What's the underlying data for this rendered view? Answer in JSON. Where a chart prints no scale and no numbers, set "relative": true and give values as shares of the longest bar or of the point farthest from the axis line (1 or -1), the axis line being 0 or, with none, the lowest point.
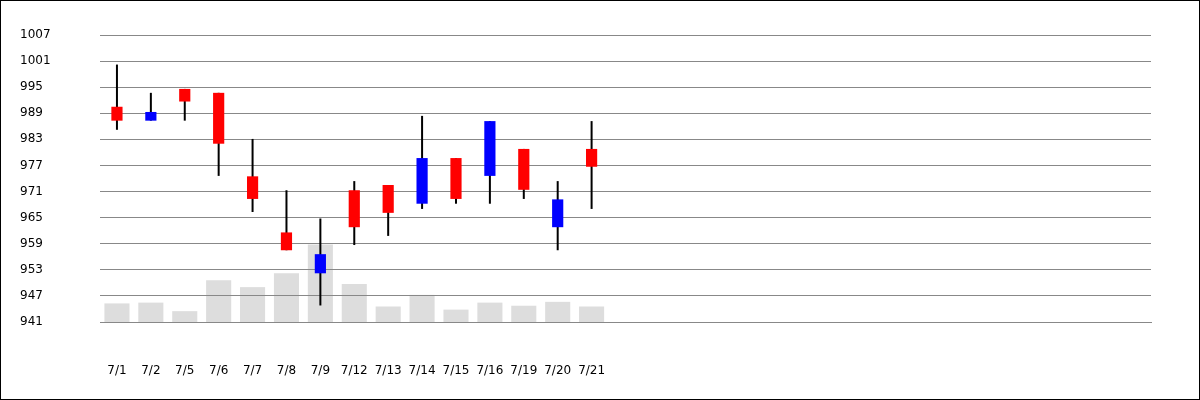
{
  "chart_data": [
    {
      "type": "candlestick",
      "categories": [
        "7/1",
        "7/2",
        "7/5",
        "7/6",
        "7/7",
        "7/8",
        "7/9",
        "7/12",
        "7/13",
        "7/14",
        "7/15",
        "7/16",
        "7/19",
        "7/20",
        "7/21",
        null,
        null,
        null,
        null,
        null,
        null,
        null,
        null,
        null,
        null,
        null,
        null,
        null,
        null,
        null,
        null
      ],
      "ohlc": [
        [
          990.5,
          1000.2,
          985.2,
          987.3
        ],
        [
          987.3,
          993.7,
          987.3,
          989.3
        ],
        [
          994.6,
          994.6,
          987.3,
          991.7
        ],
        [
          993.7,
          993.7,
          974.6,
          982
        ],
        [
          974.5,
          983.1,
          966.3,
          969.3
        ],
        [
          961.6,
          971.3,
          957.5,
          957.5
        ],
        [
          952.2,
          964.8,
          944.8,
          956.6
        ],
        [
          971.3,
          973.4,
          958.7,
          962.8
        ],
        [
          972.5,
          972.5,
          960.8,
          966.1
        ],
        [
          968.2,
          988.4,
          967,
          978.7
        ],
        [
          978.7,
          978.7,
          968.2,
          969.3
        ],
        [
          974.6,
          987.2,
          968.2,
          987.2
        ],
        [
          980.8,
          980.8,
          969.3,
          971.4
        ],
        [
          962.8,
          973.4,
          957.5,
          969.2
        ],
        [
          980.8,
          987.2,
          967,
          976.7
        ],
        null,
        null,
        null,
        null,
        null,
        null,
        null,
        null,
        null,
        null,
        null,
        null,
        null,
        null,
        null,
        null
      ],
      "colors": [
        "#ff0000",
        "#0000ff",
        "#ff0000",
        "#ff0000",
        "#ff0000",
        "#ff0000",
        "#0000ff",
        "#ff0000",
        "#ff0000",
        "#0000ff",
        "#ff0000",
        "#0000ff",
        "#ff0000",
        "#0000ff",
        "#ff0000",
        null,
        null,
        null,
        null,
        null,
        null,
        null,
        null,
        null,
        null,
        null,
        null,
        null,
        null,
        null,
        null
      ],
      "ylim": [
        941,
        1007
      ],
      "yticks": [
        941,
        947,
        953,
        959,
        965,
        971,
        977,
        983,
        989,
        995,
        1001,
        1007
      ],
      "grid": "y",
      "legend": false
    },
    {
      "type": "bar",
      "relative": true,
      "legend": false,
      "categories": [
        null,
        null,
        null,
        null,
        null,
        null,
        null,
        null,
        null,
        null,
        null,
        null,
        null,
        null,
        null,
        null,
        null,
        null,
        null,
        null,
        null,
        null,
        null,
        null,
        null,
        null,
        null,
        null,
        null,
        null,
        null
      ],
      "color": "#dddddd",
      "values": [
        0.24,
        0.25,
        0.14,
        0.54,
        0.45,
        0.63,
        1,
        0.49,
        0.2,
        0.35,
        0.16,
        0.25,
        0.21,
        0.26,
        0.2,
        null,
        null,
        null,
        null,
        null,
        null,
        null,
        null,
        null,
        null,
        null,
        null,
        null,
        null,
        null,
        null
      ]
    }
  ]
}
